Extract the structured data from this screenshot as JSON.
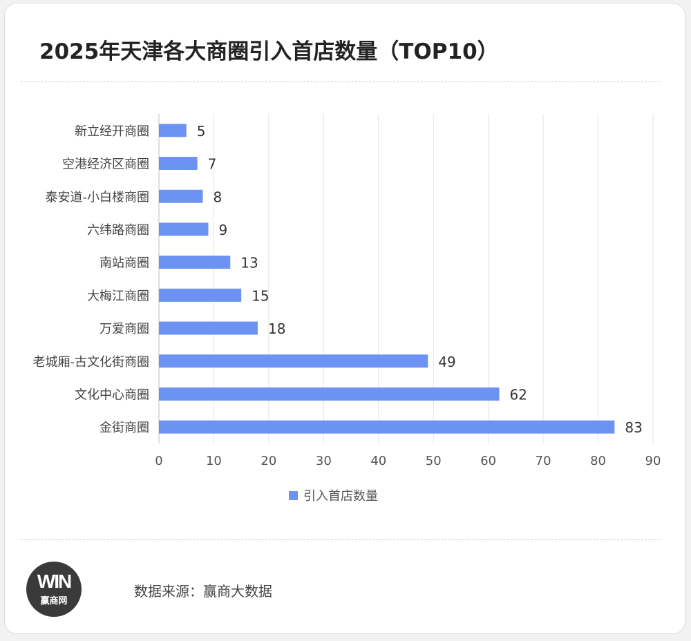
{
  "title": "2025年天津各大商圈引入首店数量（TOP10）",
  "chart_data": {
    "type": "bar",
    "orientation": "horizontal",
    "categories": [
      "新立经开商圈",
      "空港经济区商圈",
      "泰安道-小白楼商圈",
      "六纬路商圈",
      "南站商圈",
      "大梅江商圈",
      "万爱商圈",
      "老城厢-古文化街商圈",
      "文化中心商圈",
      "金街商圈"
    ],
    "series": [
      {
        "name": "引入首店数量",
        "values": [
          5,
          7,
          8,
          9,
          13,
          15,
          18,
          49,
          62,
          83
        ]
      }
    ],
    "xlim": [
      0,
      90
    ],
    "xticks": [
      0,
      10,
      20,
      30,
      40,
      50,
      60,
      70,
      80,
      90
    ],
    "grid": "vertical",
    "legend": "bottom-center",
    "bar_color": "#6d93f2",
    "data_labels": true
  },
  "footer": {
    "logo_mark": "WIN",
    "logo_text": "赢商网",
    "source": "数据来源：赢商大数据"
  }
}
